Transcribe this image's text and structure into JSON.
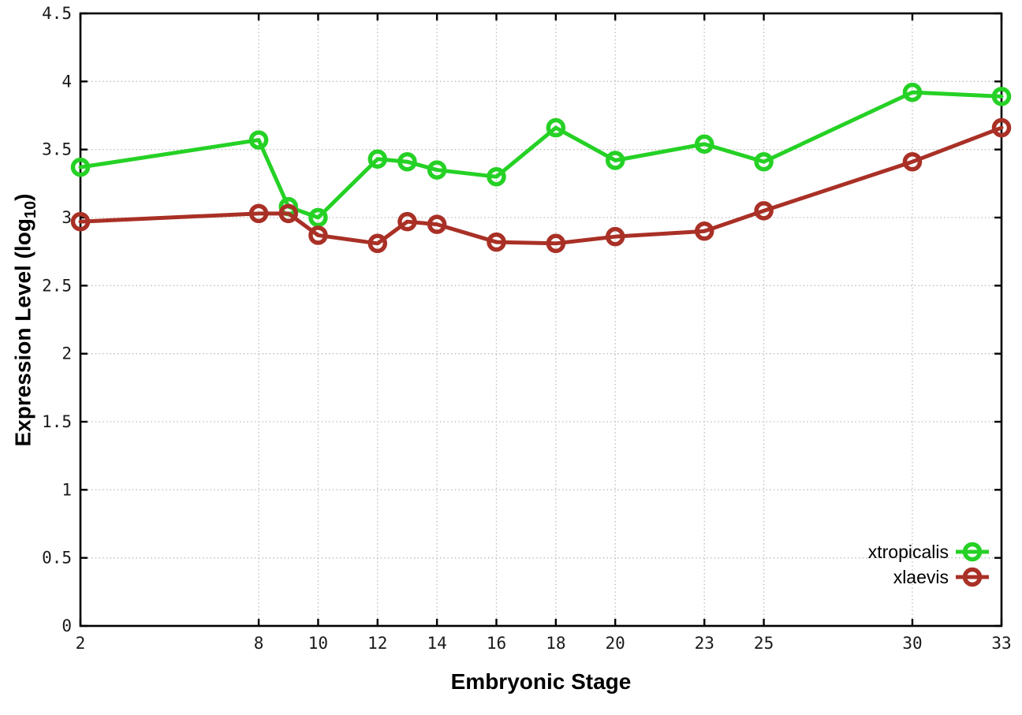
{
  "chart_data": {
    "type": "line",
    "title": "",
    "xlabel": "Embryonic Stage",
    "ylabel": {
      "prefix": "Expression Level (log",
      "sub": "10",
      "suffix": ")"
    },
    "xlim": [
      2,
      33
    ],
    "ylim": [
      0,
      4.5
    ],
    "x_ticks": [
      2,
      8,
      10,
      12,
      14,
      16,
      18,
      20,
      23,
      25,
      30,
      33
    ],
    "y_ticks": [
      0,
      0.5,
      1,
      1.5,
      2,
      2.5,
      3,
      3.5,
      4,
      4.5
    ],
    "grid": true,
    "legend_position": "bottom-right",
    "x": [
      2,
      8,
      9,
      10,
      12,
      13,
      14,
      16,
      18,
      20,
      23,
      25,
      30,
      33
    ],
    "series": [
      {
        "name": "xtropicalis",
        "color": "#25d125",
        "values": [
          3.37,
          3.57,
          3.08,
          3.0,
          3.43,
          3.41,
          3.35,
          3.3,
          3.66,
          3.42,
          3.54,
          3.41,
          3.92,
          3.89
        ]
      },
      {
        "name": "xlaevis",
        "color": "#a93026",
        "values": [
          2.97,
          3.03,
          3.03,
          2.87,
          2.81,
          2.97,
          2.95,
          2.82,
          2.81,
          2.86,
          2.9,
          3.05,
          3.41,
          3.66
        ]
      }
    ],
    "colors": {
      "grid": "#bdbdbd",
      "axis": "#000000",
      "tick_label": "#1a1a1a"
    }
  }
}
